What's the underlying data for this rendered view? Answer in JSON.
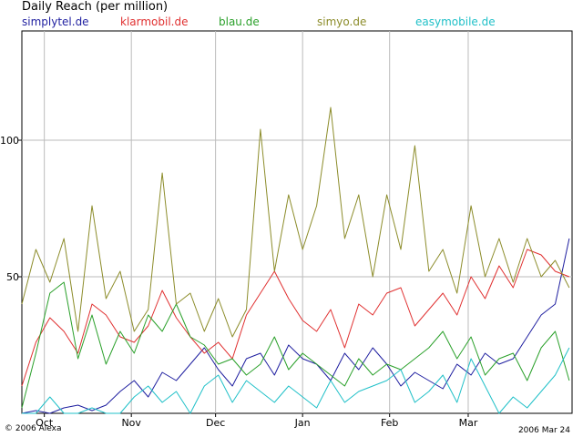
{
  "chart_data": {
    "type": "line",
    "title": "Daily Reach (per million)",
    "xlabel": "",
    "ylabel": "",
    "ylim": [
      0,
      140
    ],
    "yticks": [
      50,
      100
    ],
    "grid": true,
    "x_start_day": 0,
    "x_end_day": 196,
    "x_ticks": [
      {
        "label": "Oct",
        "day": 8
      },
      {
        "label": "Nov",
        "day": 39
      },
      {
        "label": "Dec",
        "day": 69
      },
      {
        "label": "Jan",
        "day": 100
      },
      {
        "label": "Feb",
        "day": 131
      },
      {
        "label": "Mar",
        "day": 159
      }
    ],
    "series": [
      {
        "name": "simplytel.de",
        "color": "#1f1fa0",
        "x": [
          0,
          5,
          10,
          15,
          20,
          25,
          30,
          35,
          40,
          45,
          50,
          55,
          60,
          65,
          70,
          75,
          80,
          85,
          90,
          95,
          100,
          105,
          110,
          115,
          120,
          125,
          130,
          135,
          140,
          145,
          150,
          155,
          160,
          165,
          170,
          175,
          180,
          185,
          190,
          195
        ],
        "values": [
          0,
          1,
          0,
          2,
          3,
          1,
          3,
          8,
          12,
          6,
          15,
          12,
          18,
          24,
          16,
          10,
          20,
          22,
          14,
          25,
          20,
          18,
          12,
          22,
          16,
          24,
          18,
          10,
          15,
          12,
          9,
          18,
          14,
          22,
          18,
          20,
          28,
          36,
          40,
          64
        ]
      },
      {
        "name": "klarmobil.de",
        "color": "#e03030",
        "x": [
          0,
          5,
          10,
          15,
          20,
          25,
          30,
          35,
          40,
          45,
          50,
          55,
          60,
          65,
          70,
          75,
          80,
          85,
          90,
          95,
          100,
          105,
          110,
          115,
          120,
          125,
          130,
          135,
          140,
          145,
          150,
          155,
          160,
          165,
          170,
          175,
          180,
          185,
          190,
          195
        ],
        "values": [
          10,
          26,
          35,
          30,
          22,
          40,
          36,
          28,
          26,
          32,
          45,
          35,
          28,
          22,
          26,
          20,
          36,
          44,
          52,
          42,
          34,
          30,
          38,
          24,
          40,
          36,
          44,
          46,
          32,
          38,
          44,
          36,
          50,
          42,
          54,
          46,
          60,
          58,
          52,
          50
        ]
      },
      {
        "name": "blau.de",
        "color": "#2aa02a",
        "x": [
          0,
          5,
          10,
          15,
          20,
          25,
          30,
          35,
          40,
          45,
          50,
          55,
          60,
          65,
          70,
          75,
          80,
          85,
          90,
          95,
          100,
          105,
          110,
          115,
          120,
          125,
          130,
          135,
          140,
          145,
          150,
          155,
          160,
          165,
          170,
          175,
          180,
          185,
          190,
          195
        ],
        "values": [
          2,
          22,
          44,
          48,
          20,
          36,
          18,
          30,
          22,
          36,
          30,
          40,
          28,
          25,
          18,
          20,
          14,
          18,
          28,
          16,
          22,
          18,
          14,
          10,
          20,
          14,
          18,
          16,
          20,
          24,
          30,
          20,
          28,
          14,
          20,
          22,
          12,
          24,
          30,
          12
        ]
      },
      {
        "name": "simyo.de",
        "color": "#8c8c2a",
        "x": [
          0,
          5,
          10,
          15,
          20,
          25,
          30,
          35,
          40,
          45,
          50,
          55,
          60,
          65,
          70,
          75,
          80,
          85,
          90,
          95,
          100,
          105,
          110,
          115,
          120,
          125,
          130,
          135,
          140,
          145,
          150,
          155,
          160,
          165,
          170,
          175,
          180,
          185,
          190,
          195
        ],
        "values": [
          40,
          60,
          48,
          64,
          30,
          76,
          42,
          52,
          30,
          38,
          88,
          40,
          44,
          30,
          42,
          28,
          38,
          104,
          52,
          80,
          60,
          76,
          112,
          64,
          80,
          50,
          80,
          60,
          98,
          52,
          60,
          44,
          76,
          50,
          64,
          48,
          64,
          50,
          56,
          46
        ]
      },
      {
        "name": "easymobile.de",
        "color": "#20c0c8",
        "x": [
          0,
          5,
          10,
          15,
          20,
          25,
          30,
          35,
          40,
          45,
          50,
          55,
          60,
          65,
          70,
          75,
          80,
          85,
          90,
          95,
          100,
          105,
          110,
          115,
          120,
          125,
          130,
          135,
          140,
          145,
          150,
          155,
          160,
          165,
          170,
          175,
          180,
          185,
          190,
          195
        ],
        "values": [
          0,
          0,
          6,
          0,
          0,
          2,
          0,
          0,
          6,
          10,
          4,
          8,
          0,
          10,
          14,
          4,
          12,
          8,
          4,
          10,
          6,
          2,
          12,
          4,
          8,
          10,
          12,
          16,
          4,
          8,
          14,
          4,
          20,
          10,
          0,
          6,
          2,
          8,
          14,
          24
        ]
      }
    ]
  },
  "footer": {
    "copyright": "© 2006 Alexa",
    "date": "2006 Mar 24"
  }
}
